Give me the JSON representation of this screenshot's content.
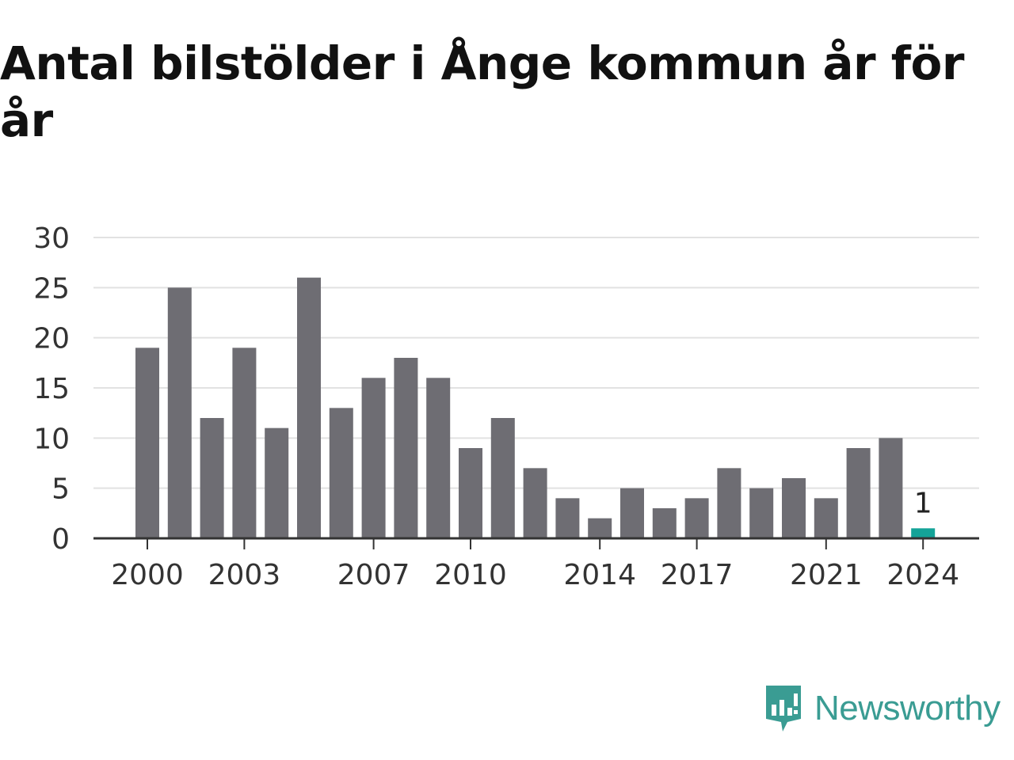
{
  "title": "Antal bilstölder i Ånge kommun år för år",
  "brand": {
    "name": "Newsworthy",
    "icon": "newsworthy-logo-icon",
    "color": "#3a9c93"
  },
  "chart_data": {
    "type": "bar",
    "title": "Antal bilstölder i Ånge kommun år för år",
    "xlabel": "",
    "ylabel": "",
    "categories": [
      "2000",
      "2001",
      "2002",
      "2003",
      "2004",
      "2005",
      "2006",
      "2007",
      "2008",
      "2009",
      "2010",
      "2011",
      "2012",
      "2013",
      "2014",
      "2015",
      "2016",
      "2017",
      "2018",
      "2019",
      "2020",
      "2021",
      "2022",
      "2023",
      "2024"
    ],
    "values": [
      19,
      25,
      12,
      19,
      11,
      26,
      13,
      16,
      18,
      16,
      9,
      12,
      7,
      4,
      2,
      5,
      3,
      4,
      7,
      5,
      6,
      4,
      9,
      10,
      1
    ],
    "x_tick_labels": [
      "2000",
      "2003",
      "2007",
      "2010",
      "2014",
      "2017",
      "2021",
      "2024"
    ],
    "y_ticks": [
      0,
      5,
      10,
      15,
      20,
      25,
      30
    ],
    "ylim": [
      0,
      30
    ],
    "grid": true,
    "legend": "none",
    "highlight_category": "2024",
    "highlight_label": "1",
    "colors": {
      "bar": "#6e6d73",
      "highlight": "#14a398",
      "grid": "#e2e2e2",
      "axis": "#333333"
    }
  }
}
